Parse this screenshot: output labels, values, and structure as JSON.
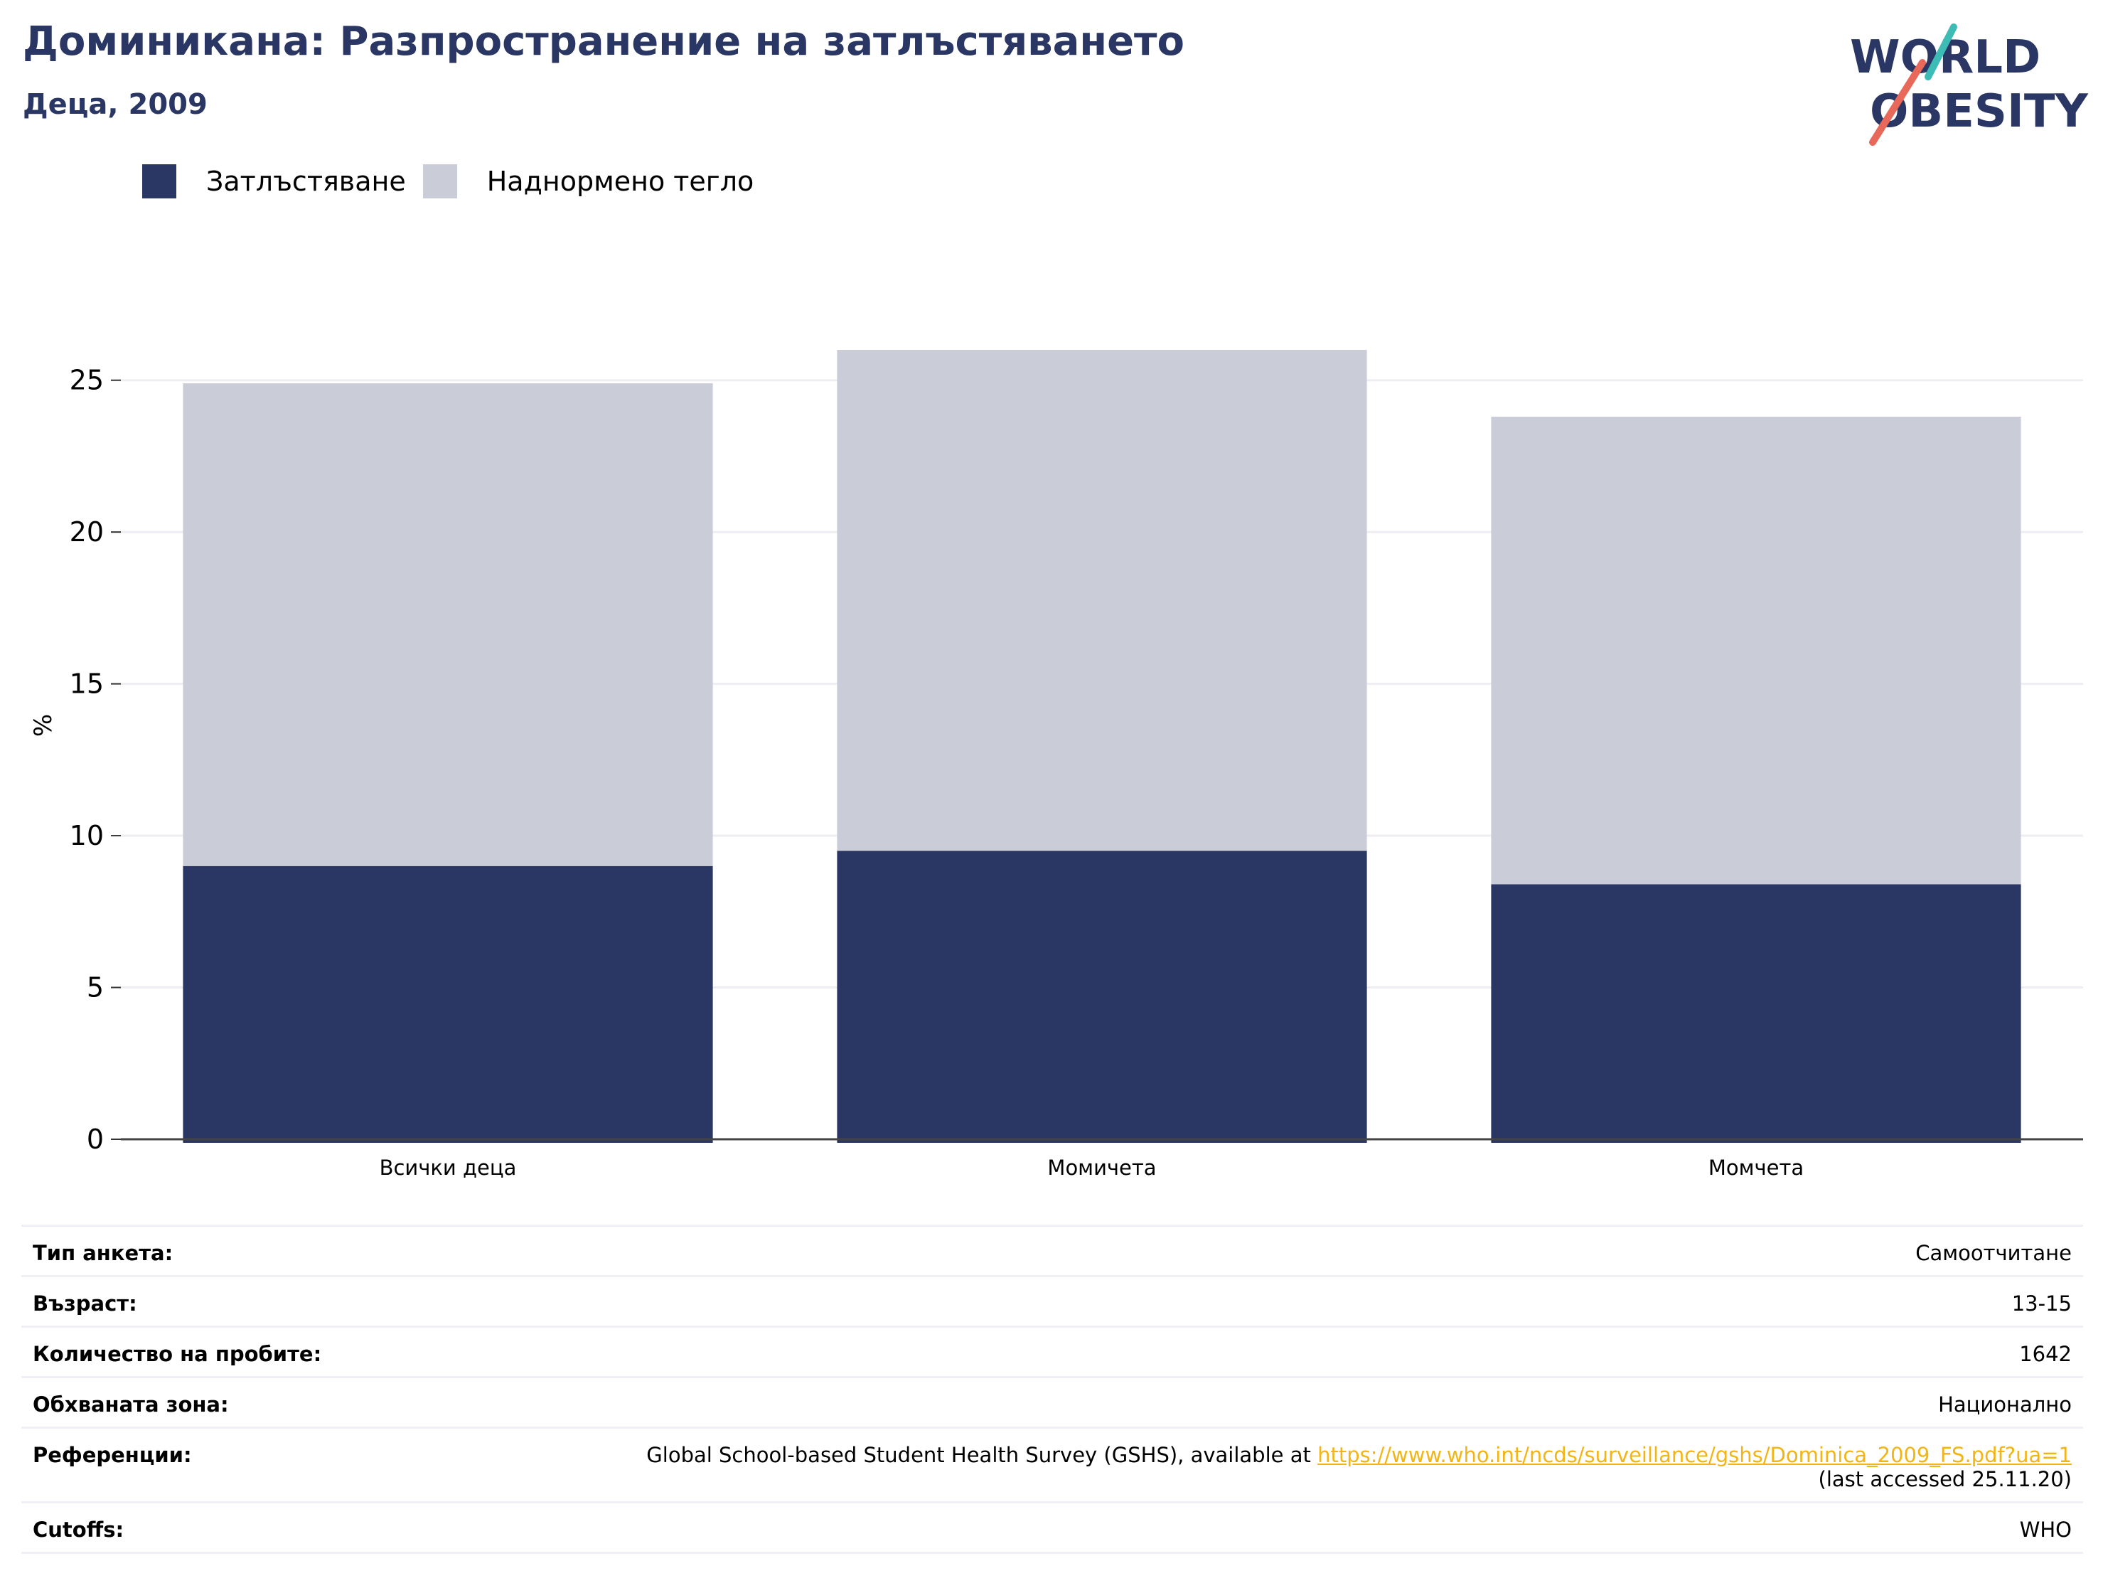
{
  "header": {
    "title": "Доминикана: Разпространение на затлъстяването",
    "subtitle": "Деца, 2009"
  },
  "logo": {
    "line1": "WORLD",
    "line2": "OBESITY"
  },
  "colors": {
    "obesity": "#2a3764",
    "overweight": "#caccd8",
    "brand": "#2a3764",
    "link": "#f2b515",
    "logo_teal": "#3cbcb4",
    "logo_coral": "#e8685a"
  },
  "chart_data": {
    "type": "bar",
    "stacked": true,
    "categories": [
      "Всички деца",
      "Момичета",
      "Момчета"
    ],
    "series": [
      {
        "name": "Затлъстяване",
        "values": [
          9.0,
          9.5,
          8.4
        ]
      },
      {
        "name": "Наднормено тегло",
        "values": [
          15.9,
          16.5,
          15.4
        ]
      }
    ],
    "ylabel": "%",
    "ylim": [
      0,
      26
    ],
    "yticks": [
      0,
      5,
      10,
      15,
      20,
      25
    ],
    "grid": true,
    "legend": "top-left"
  },
  "info": {
    "rows": [
      {
        "label": "Тип анкета:",
        "value": "Самоотчитане"
      },
      {
        "label": "Възраст:",
        "value": "13-15"
      },
      {
        "label": "Количество на пробите:",
        "value": "1642"
      },
      {
        "label": "Обхваната зона:",
        "value": "Национално"
      }
    ],
    "reference": {
      "label": "Референции:",
      "text": "Global School-based Student Health Survey (GSHS), available at ",
      "link": "https://www.who.int/ncds/surveillance/gshs/Dominica_2009_FS.pdf?ua=1",
      "suffix": "(last accessed 25.11.20)"
    },
    "cutoffs": {
      "label": "Cutoffs:",
      "value": "WHO"
    }
  }
}
